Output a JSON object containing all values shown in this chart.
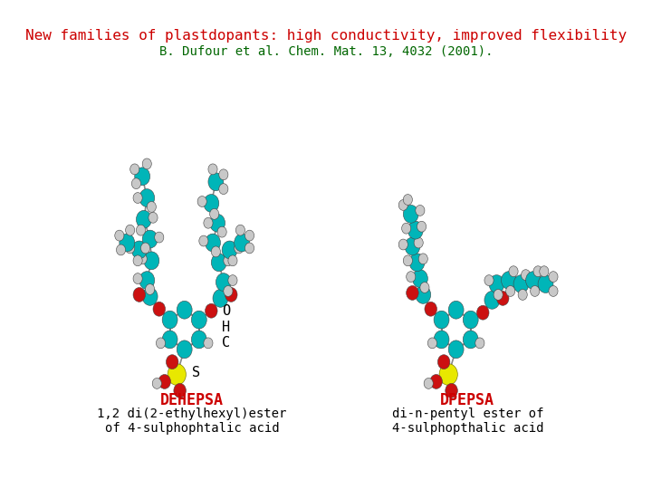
{
  "title": "New families of plastdopants: high conductivity, improved flexibility",
  "subtitle": "B. Dufour et al. Chem. Mat. 13, 4032 (2001).",
  "title_color": "#cc0000",
  "subtitle_color": "#006600",
  "label1": "DEHEPSA",
  "desc1_line1": "1,2 di(2-ethylhexyl)ester",
  "desc1_line2": "of 4-sulphophtalic acid",
  "label2": "DPEPSA",
  "desc2_line1": "di-n-pentyl ester of",
  "desc2_line2": "4-sulphopthalic acid",
  "label_color": "#cc0000",
  "desc_color": "#000000",
  "bg_color": "#ffffff",
  "teal": "#00b5b8",
  "red_atom": "#cc1111",
  "white_atom": "#c8c8c8",
  "yellow_atom": "#e8e800",
  "bond_color": "#888888"
}
